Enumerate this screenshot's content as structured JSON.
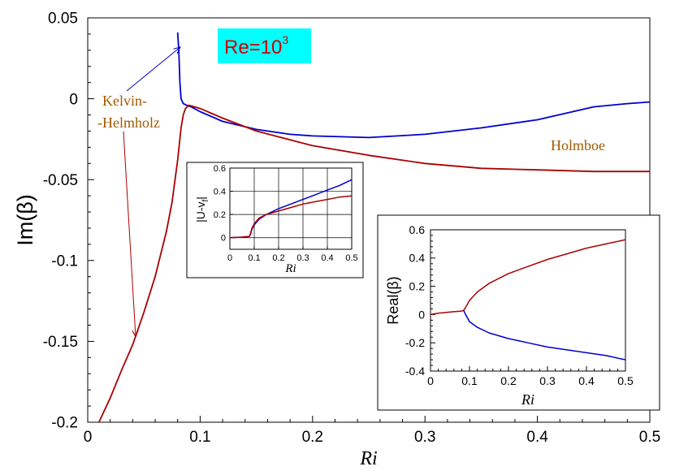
{
  "chart_data": [
    {
      "id": "main",
      "type": "line",
      "xlabel": "Ri",
      "ylabel": "Im(β)",
      "xlim": [
        0,
        0.5
      ],
      "ylim": [
        -0.2,
        0.05
      ],
      "x_ticks": [
        "0",
        "0.1",
        "0.2",
        "0.3",
        "0.4",
        "0.5"
      ],
      "y_ticks": [
        "0.05",
        "0",
        "-0.05",
        "-0.1",
        "-0.15",
        "-0.2"
      ],
      "grid": false,
      "badge": {
        "base": "Re=10",
        "exponent": "3",
        "background": "#00ffff",
        "color": "#cc0000"
      },
      "annotations": {
        "kh_line1": "Kelvin-",
        "kh_line2": "-Helmholz",
        "holmboe": "Holmboe",
        "color": "#a05a00"
      },
      "series": [
        {
          "color": "#0000cc",
          "x": [
            0.08,
            0.081,
            0.082,
            0.083,
            0.085,
            0.088,
            0.092,
            0.1,
            0.12,
            0.15,
            0.18,
            0.2,
            0.25,
            0.3,
            0.35,
            0.4,
            0.45,
            0.48,
            0.5
          ],
          "y": [
            0.041,
            0.03,
            0.01,
            0.0,
            -0.003,
            -0.004,
            -0.005,
            -0.008,
            -0.014,
            -0.019,
            -0.022,
            -0.023,
            -0.024,
            -0.022,
            -0.018,
            -0.013,
            -0.005,
            -0.003,
            -0.002
          ]
        },
        {
          "color": "#aa0000",
          "x": [
            0.01,
            0.02,
            0.03,
            0.04,
            0.05,
            0.06,
            0.07,
            0.075,
            0.08,
            0.083,
            0.085,
            0.087,
            0.09,
            0.1,
            0.12,
            0.15,
            0.2,
            0.25,
            0.3,
            0.35,
            0.4,
            0.45,
            0.5
          ],
          "y": [
            -0.2,
            -0.185,
            -0.168,
            -0.152,
            -0.132,
            -0.11,
            -0.082,
            -0.064,
            -0.038,
            -0.018,
            -0.01,
            -0.006,
            -0.004,
            -0.006,
            -0.012,
            -0.02,
            -0.029,
            -0.035,
            -0.04,
            -0.043,
            -0.044,
            -0.045,
            -0.045
          ]
        }
      ]
    },
    {
      "id": "inset1",
      "type": "line",
      "xlabel": "Ri",
      "ylabel": "|U-v",
      "ylabel_sub": "f",
      "ylabel_end": "|",
      "xlim": [
        0,
        0.5
      ],
      "ylim": [
        -0.1,
        0.6
      ],
      "x_ticks": [
        "0",
        "0.1",
        "0.2",
        "0.3",
        "0.4",
        "0.5"
      ],
      "y_ticks": [
        "0.6",
        "0.4",
        "0.2",
        "0"
      ],
      "grid": true,
      "series": [
        {
          "color": "#0000cc",
          "x": [
            0,
            0.05,
            0.08,
            0.085,
            0.09,
            0.1,
            0.12,
            0.15,
            0.2,
            0.25,
            0.3,
            0.35,
            0.4,
            0.45,
            0.5
          ],
          "y": [
            0.0,
            0.005,
            0.01,
            0.03,
            0.07,
            0.11,
            0.16,
            0.2,
            0.25,
            0.29,
            0.33,
            0.37,
            0.41,
            0.45,
            0.5
          ]
        },
        {
          "color": "#aa0000",
          "x": [
            0,
            0.05,
            0.08,
            0.085,
            0.09,
            0.1,
            0.12,
            0.15,
            0.2,
            0.25,
            0.3,
            0.35,
            0.4,
            0.45,
            0.5
          ],
          "y": [
            0.0,
            0.005,
            0.01,
            0.04,
            0.08,
            0.12,
            0.17,
            0.2,
            0.23,
            0.26,
            0.29,
            0.31,
            0.33,
            0.35,
            0.36
          ]
        }
      ]
    },
    {
      "id": "inset2",
      "type": "line",
      "xlabel": "Ri",
      "ylabel": "Real(β)",
      "xlim": [
        0,
        0.5
      ],
      "ylim": [
        -0.4,
        0.6
      ],
      "x_ticks": [
        "0",
        "0.1",
        "0.2",
        "0.3",
        "0.4",
        "0.5"
      ],
      "y_ticks": [
        "0.6",
        "0.4",
        "0.2",
        "0",
        "-0.2",
        "-0.4"
      ],
      "grid": false,
      "series": [
        {
          "color": "#aa0000",
          "x": [
            0,
            0.02,
            0.04,
            0.06,
            0.08,
            0.085,
            0.09,
            0.1,
            0.12,
            0.15,
            0.2,
            0.25,
            0.3,
            0.35,
            0.4,
            0.45,
            0.5
          ],
          "y": [
            0.0,
            0.01,
            0.015,
            0.02,
            0.025,
            0.03,
            0.05,
            0.1,
            0.16,
            0.22,
            0.29,
            0.34,
            0.39,
            0.43,
            0.47,
            0.5,
            0.53
          ]
        },
        {
          "color": "#0000cc",
          "x": [
            0.085,
            0.09,
            0.1,
            0.12,
            0.15,
            0.2,
            0.25,
            0.3,
            0.35,
            0.4,
            0.45,
            0.5
          ],
          "y": [
            0.03,
            0.0,
            -0.05,
            -0.09,
            -0.13,
            -0.17,
            -0.2,
            -0.23,
            -0.25,
            -0.27,
            -0.29,
            -0.32
          ]
        }
      ]
    }
  ]
}
